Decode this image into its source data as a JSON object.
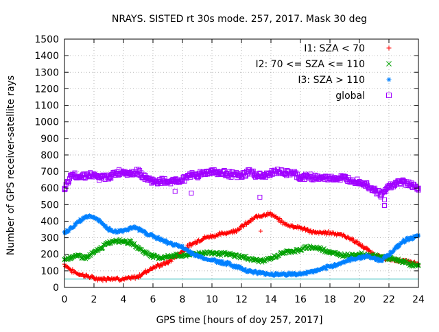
{
  "chart_data": {
    "type": "scatter",
    "title": "NRAYS. SISTED rt 30s mode. 257, 2017. Mask 30 deg",
    "xlabel": "GPS time [hours of doy 257, 2017]",
    "ylabel": "Number of GPS receiver-satellite rays",
    "xlim": [
      0,
      24
    ],
    "ylim": [
      0,
      1500
    ],
    "xticks": [
      0,
      2,
      4,
      6,
      8,
      10,
      12,
      14,
      16,
      18,
      20,
      22,
      24
    ],
    "yticks": [
      0,
      100,
      200,
      300,
      400,
      500,
      600,
      700,
      800,
      900,
      1000,
      1100,
      1200,
      1300,
      1400,
      1500
    ],
    "grid": true,
    "legend_position": "top-right",
    "threshold_line": {
      "value": 50,
      "color": "#40c0c0"
    },
    "series": [
      {
        "name": "I1: SZA < 70",
        "marker": "+",
        "color": "#ff0000",
        "x": [
          0,
          0.5,
          1,
          1.5,
          2,
          2.5,
          3,
          3.5,
          4,
          4.5,
          5,
          5.5,
          6,
          6.5,
          7,
          7.5,
          8,
          8.5,
          9,
          9.5,
          10,
          10.5,
          11,
          11.5,
          12,
          12.5,
          13,
          13.5,
          14,
          14.5,
          15,
          15.5,
          16,
          16.5,
          17,
          17.5,
          18,
          18.5,
          19,
          19.5,
          20,
          20.5,
          21,
          21.5,
          22,
          22.5,
          23,
          23.5,
          24
        ],
        "y": [
          140,
          100,
          80,
          70,
          55,
          50,
          55,
          55,
          50,
          55,
          65,
          95,
          120,
          135,
          150,
          185,
          220,
          255,
          280,
          300,
          310,
          320,
          330,
          340,
          365,
          395,
          425,
          440,
          445,
          410,
          380,
          370,
          360,
          345,
          330,
          330,
          330,
          325,
          310,
          290,
          260,
          230,
          200,
          180,
          170,
          165,
          160,
          150,
          140
        ]
      },
      {
        "name": "I2: 70 <= SZA <= 110",
        "marker": "x",
        "color": "#00a000",
        "x": [
          0,
          0.5,
          1,
          1.5,
          2,
          2.5,
          3,
          3.5,
          4,
          4.5,
          5,
          5.5,
          6,
          6.5,
          7,
          7.5,
          8,
          8.5,
          9,
          9.5,
          10,
          10.5,
          11,
          11.5,
          12,
          12.5,
          13,
          13.5,
          14,
          14.5,
          15,
          15.5,
          16,
          16.5,
          17,
          17.5,
          18,
          18.5,
          19,
          19.5,
          20,
          20.5,
          21,
          21.5,
          22,
          22.5,
          23,
          23.5,
          24
        ],
        "y": [
          170,
          185,
          190,
          180,
          210,
          240,
          270,
          285,
          280,
          270,
          240,
          210,
          190,
          180,
          185,
          195,
          190,
          200,
          205,
          210,
          210,
          205,
          200,
          195,
          185,
          175,
          165,
          160,
          175,
          195,
          215,
          220,
          225,
          245,
          240,
          230,
          215,
          200,
          195,
          195,
          200,
          195,
          190,
          185,
          175,
          165,
          155,
          140,
          130
        ]
      },
      {
        "name": "I3: SZA > 110",
        "marker": "*",
        "color": "#0080ff",
        "x": [
          0,
          0.5,
          1,
          1.5,
          2,
          2.5,
          3,
          3.5,
          4,
          4.5,
          5,
          5.5,
          6,
          6.5,
          7,
          7.5,
          8,
          8.5,
          9,
          9.5,
          10,
          10.5,
          11,
          11.5,
          12,
          12.5,
          13,
          13.5,
          14,
          14.5,
          15,
          15.5,
          16,
          16.5,
          17,
          17.5,
          18,
          18.5,
          19,
          19.5,
          20,
          20.5,
          21,
          21.5,
          22,
          22.5,
          23,
          23.5,
          24
        ],
        "y": [
          330,
          360,
          400,
          430,
          425,
          390,
          350,
          335,
          345,
          360,
          355,
          330,
          310,
          290,
          270,
          260,
          240,
          215,
          190,
          175,
          165,
          155,
          145,
          130,
          115,
          100,
          90,
          85,
          80,
          80,
          80,
          80,
          80,
          90,
          100,
          110,
          125,
          140,
          155,
          170,
          180,
          190,
          175,
          165,
          200,
          240,
          280,
          300,
          310
        ]
      },
      {
        "name": "global",
        "marker": "square",
        "color": "#a000ff",
        "x": [
          0,
          0.5,
          1,
          1.5,
          2,
          2.5,
          3,
          3.5,
          4,
          4.5,
          5,
          5.5,
          6,
          6.5,
          7,
          7.5,
          8,
          8.5,
          9,
          9.5,
          10,
          10.5,
          11,
          11.5,
          12,
          12.5,
          13,
          13.5,
          14,
          14.5,
          15,
          15.5,
          16,
          16.5,
          17,
          17.5,
          18,
          18.5,
          19,
          19.5,
          20,
          20.5,
          21,
          21.5,
          22,
          22.5,
          23,
          23.5,
          24
        ],
        "y": [
          590,
          680,
          670,
          680,
          675,
          660,
          670,
          690,
          700,
          690,
          700,
          660,
          640,
          640,
          640,
          640,
          650,
          680,
          680,
          690,
          705,
          690,
          690,
          680,
          670,
          700,
          680,
          670,
          690,
          700,
          690,
          690,
          660,
          670,
          665,
          660,
          660,
          660,
          660,
          650,
          640,
          620,
          590,
          560,
          610,
          630,
          640,
          620,
          600
        ]
      }
    ],
    "outliers": [
      {
        "series": "I1: SZA < 70",
        "x": 13.3,
        "y": 340
      },
      {
        "series": "global",
        "x": 8.6,
        "y": 570
      },
      {
        "series": "global",
        "x": 13.25,
        "y": 545
      },
      {
        "series": "global",
        "x": 21.7,
        "y": 495
      },
      {
        "series": "global",
        "x": 21.7,
        "y": 530
      },
      {
        "series": "global",
        "x": 7.5,
        "y": 580
      }
    ]
  }
}
